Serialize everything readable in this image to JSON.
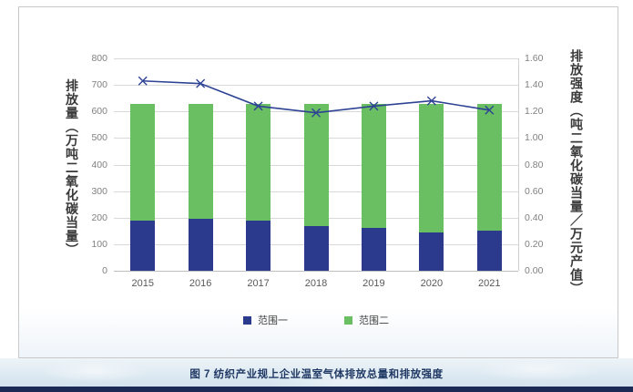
{
  "caption": "图 7 纺织产业规上企业温室气体排放总量和排放强度",
  "chart_data": {
    "type": "bar",
    "stacked": true,
    "categories": [
      "2015",
      "2016",
      "2017",
      "2018",
      "2019",
      "2020",
      "2021"
    ],
    "series": [
      {
        "name": "范围一",
        "values": [
          189,
          195,
          190,
          170,
          160,
          143,
          150
        ]
      },
      {
        "name": "范围二",
        "values": [
          439,
          433,
          438,
          458,
          468,
          485,
          478
        ]
      }
    ],
    "line_series": {
      "name": "排放强度",
      "axis": "right",
      "marker": "x",
      "values": [
        1.43,
        1.41,
        1.24,
        1.19,
        1.24,
        1.28,
        1.21
      ]
    },
    "left_axis": {
      "title": "排放量（万吨二氧化碳当量）",
      "min": 0,
      "max": 800,
      "step": 100,
      "ticks": [
        "0",
        "100",
        "200",
        "300",
        "400",
        "500",
        "600",
        "700",
        "800"
      ]
    },
    "right_axis": {
      "title": "排放强度（吨二氧化碳当量／万元产值）",
      "min": 0,
      "max": 1.6,
      "step": 0.2,
      "ticks": [
        "0.00",
        "0.20",
        "0.40",
        "0.60",
        "0.80",
        "1.00",
        "1.20",
        "1.40",
        "1.60"
      ]
    },
    "legend": [
      "范围一",
      "范围二"
    ],
    "legend_position": "bottom",
    "grid": true,
    "colors": {
      "scope1_bar": "#2b3a8c",
      "scope2_bar": "#6abf63",
      "intensity_line": "#2e4394",
      "gridline": "#d9d9d9",
      "tick_text": "#808080",
      "caption_text": "#1f3864",
      "footer_bar": "#1b2a55"
    }
  }
}
